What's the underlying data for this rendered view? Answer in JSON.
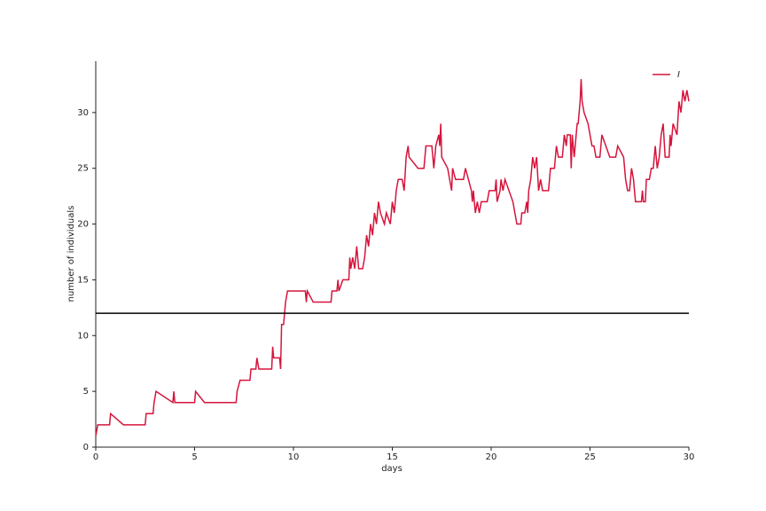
{
  "chart_data": {
    "type": "line",
    "xlabel": "days",
    "ylabel": "number of individuals",
    "x": [
      0,
      0.1,
      0.7,
      0.75,
      1.4,
      2.5,
      2.55,
      2.9,
      2.95,
      3.05,
      3.9,
      3.95,
      4.0,
      5.0,
      5.05,
      5.5,
      7.1,
      7.15,
      7.3,
      7.8,
      7.85,
      8.1,
      8.15,
      8.25,
      8.9,
      8.95,
      9.0,
      9.3,
      9.35,
      9.4,
      9.5,
      9.55,
      9.6,
      9.7,
      10.6,
      10.65,
      10.7,
      11.0,
      11.9,
      11.95,
      12.2,
      12.25,
      12.3,
      12.5,
      12.8,
      12.85,
      12.9,
      13.0,
      13.1,
      13.2,
      13.3,
      13.5,
      13.6,
      13.7,
      13.8,
      13.9,
      14.0,
      14.1,
      14.2,
      14.3,
      14.4,
      14.6,
      14.7,
      14.9,
      15.0,
      15.1,
      15.2,
      15.3,
      15.5,
      15.6,
      15.7,
      15.8,
      15.85,
      16.3,
      16.6,
      16.7,
      17.0,
      17.1,
      17.2,
      17.35,
      17.4,
      17.45,
      17.5,
      17.8,
      17.9,
      18.0,
      18.05,
      18.2,
      18.6,
      18.7,
      19.0,
      19.05,
      19.1,
      19.2,
      19.3,
      19.4,
      19.5,
      19.8,
      19.9,
      20.2,
      20.25,
      20.3,
      20.45,
      20.5,
      20.6,
      20.7,
      21.1,
      21.3,
      21.5,
      21.55,
      21.7,
      21.8,
      21.85,
      21.9,
      22.0,
      22.1,
      22.2,
      22.3,
      22.4,
      22.5,
      22.6,
      22.9,
      23.0,
      23.2,
      23.3,
      23.4,
      23.6,
      23.65,
      23.7,
      23.8,
      23.85,
      24.0,
      24.05,
      24.1,
      24.2,
      24.3,
      24.35,
      24.4,
      24.5,
      24.55,
      24.6,
      24.7,
      24.9,
      25.1,
      25.2,
      25.3,
      25.5,
      25.6,
      25.8,
      26.0,
      26.3,
      26.4,
      26.7,
      26.8,
      26.9,
      27.0,
      27.1,
      27.2,
      27.3,
      27.6,
      27.65,
      27.7,
      27.8,
      27.85,
      28.0,
      28.1,
      28.2,
      28.3,
      28.4,
      28.5,
      28.6,
      28.7,
      28.8,
      29.0,
      29.05,
      29.1,
      29.2,
      29.4,
      29.5,
      29.6,
      29.7,
      29.8,
      29.9,
      30
    ],
    "series": [
      {
        "name": "I",
        "color": "#d6143c",
        "values": [
          1,
          2,
          2,
          3,
          2,
          2,
          3,
          3,
          4,
          5,
          4,
          5,
          4,
          4,
          5,
          4,
          4,
          5,
          6,
          6,
          7,
          7,
          8,
          7,
          7,
          9,
          8,
          8,
          7,
          11,
          11,
          12,
          13,
          14,
          14,
          13,
          14,
          13,
          13,
          14,
          14,
          15,
          14,
          15,
          15,
          17,
          16,
          17,
          16,
          18,
          16,
          16,
          17,
          19,
          18,
          20,
          19,
          21,
          20,
          22,
          21,
          20,
          21,
          20,
          22,
          21,
          23,
          24,
          24,
          23,
          26,
          27,
          26,
          25,
          25,
          27,
          27,
          25,
          27,
          28,
          27,
          29,
          26,
          25,
          24,
          23,
          25,
          24,
          24,
          25,
          23,
          22,
          23,
          21,
          22,
          21,
          22,
          22,
          23,
          23,
          24,
          22,
          23,
          24,
          23,
          24,
          22,
          20,
          20,
          21,
          21,
          22,
          21,
          23,
          24,
          26,
          25,
          26,
          23,
          24,
          23,
          23,
          25,
          25,
          27,
          26,
          26,
          27,
          28,
          27,
          28,
          28,
          25,
          28,
          26,
          28,
          29,
          29,
          31,
          33,
          31,
          30,
          29,
          27,
          27,
          26,
          26,
          28,
          27,
          26,
          26,
          27,
          26,
          24,
          23,
          23,
          25,
          24,
          22,
          22,
          23,
          22,
          22,
          24,
          24,
          25,
          25,
          27,
          25,
          26,
          28,
          29,
          26,
          26,
          28,
          27,
          29,
          28,
          31,
          30,
          32,
          31,
          32,
          31
        ]
      }
    ],
    "hline": {
      "y": 12,
      "color": "#000000"
    },
    "xlim": [
      0,
      30
    ],
    "ylim": [
      0,
      34.6
    ],
    "xticks": [
      0,
      5,
      10,
      15,
      20,
      25,
      30
    ],
    "yticks": [
      0,
      5,
      10,
      15,
      20,
      25,
      30
    ],
    "grid": false,
    "legend": "upper right"
  }
}
